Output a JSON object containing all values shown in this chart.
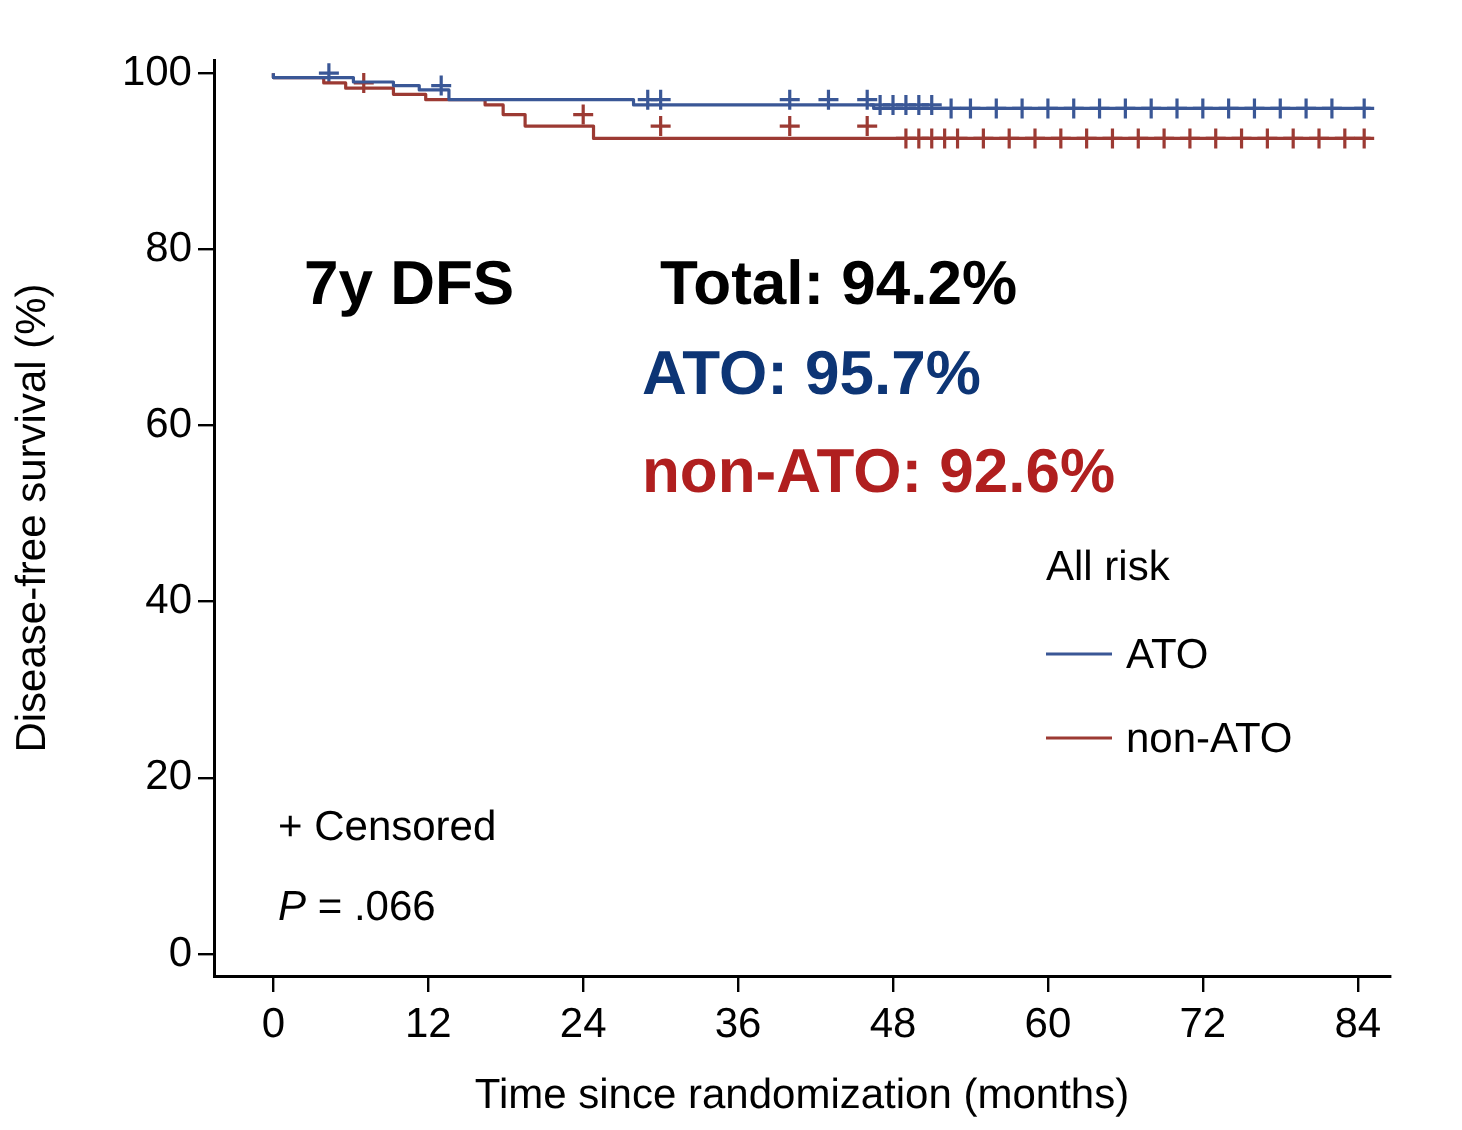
{
  "chart_data": {
    "type": "step",
    "xlabel": "Time since randomization (months)",
    "ylabel": "Disease-free survival (%)",
    "xlim": [
      -4.6,
      86.5
    ],
    "xticks": [
      0,
      12,
      24,
      36,
      48,
      60,
      72,
      84
    ],
    "ylim": [
      -2.5,
      101.5
    ],
    "yticks": [
      0,
      20,
      40,
      60,
      80,
      100
    ],
    "grid": false,
    "legend": "right",
    "legend_title": "All risk",
    "annotations": [
      "7y DFS",
      "Total: 94.2%",
      "ATO: 95.7%",
      "non-ATO: 92.6%",
      "+ Censored",
      "P = .066"
    ],
    "series": [
      {
        "name": "ATO",
        "color": "#3a5796",
        "marker": "none",
        "x": [
          0,
          6.2,
          9.3,
          11.3,
          13.6,
          27.9,
          46.5,
          52,
          85
        ],
        "values": [
          100,
          99.5,
          99.0,
          98.6,
          98.1,
          97.0,
          96.4,
          96.0,
          96.0
        ]
      },
      {
        "name": "non-ATO",
        "color": "#9c3a33",
        "marker": "none",
        "x": [
          0,
          3.9,
          5.6,
          9.3,
          11.8,
          16.4,
          17.8,
          19.5,
          24.8,
          48.8,
          85
        ],
        "values": [
          100,
          99.5,
          98.9,
          98.3,
          97.6,
          97.0,
          96.4,
          95.3,
          94.0,
          92.6,
          92.6
        ]
      },
      {
        "type": "scatter",
        "color": "#3a5796",
        "marker": "cross",
        "x": [
          4.3,
          13,
          29,
          30,
          40,
          43,
          46,
          47,
          48,
          49,
          50,
          51,
          52.5,
          54,
          56,
          58,
          60,
          62,
          64,
          66,
          68,
          70,
          72,
          74,
          76,
          78,
          80,
          82,
          84.5
        ],
        "values": [
          100,
          98.6,
          97.0,
          97.0,
          97.0,
          97.0,
          97.0,
          96.4,
          96.4,
          96.4,
          96.4,
          96.4,
          96.0,
          96.0,
          96.0,
          96.0,
          96.0,
          96.0,
          96.0,
          96.0,
          96.0,
          96.0,
          96.0,
          96.0,
          96.0,
          96.0,
          96.0,
          96.0,
          96.0
        ]
      },
      {
        "type": "scatter",
        "color": "#9c3a33",
        "marker": "cross",
        "x": [
          7,
          24,
          30,
          40,
          46,
          49,
          50,
          51,
          52,
          53,
          55,
          57,
          59,
          61,
          63,
          65,
          67,
          69,
          71,
          73,
          75,
          77,
          79,
          81,
          83,
          84.5
        ],
        "values": [
          98.9,
          95.3,
          94.0,
          94.0,
          94.0,
          92.6,
          92.6,
          92.6,
          92.6,
          92.6,
          92.6,
          92.6,
          92.6,
          92.6,
          92.6,
          92.6,
          92.6,
          92.6,
          92.6,
          92.6,
          92.6,
          92.6,
          92.6,
          92.6,
          92.6,
          92.6
        ]
      }
    ]
  }
}
